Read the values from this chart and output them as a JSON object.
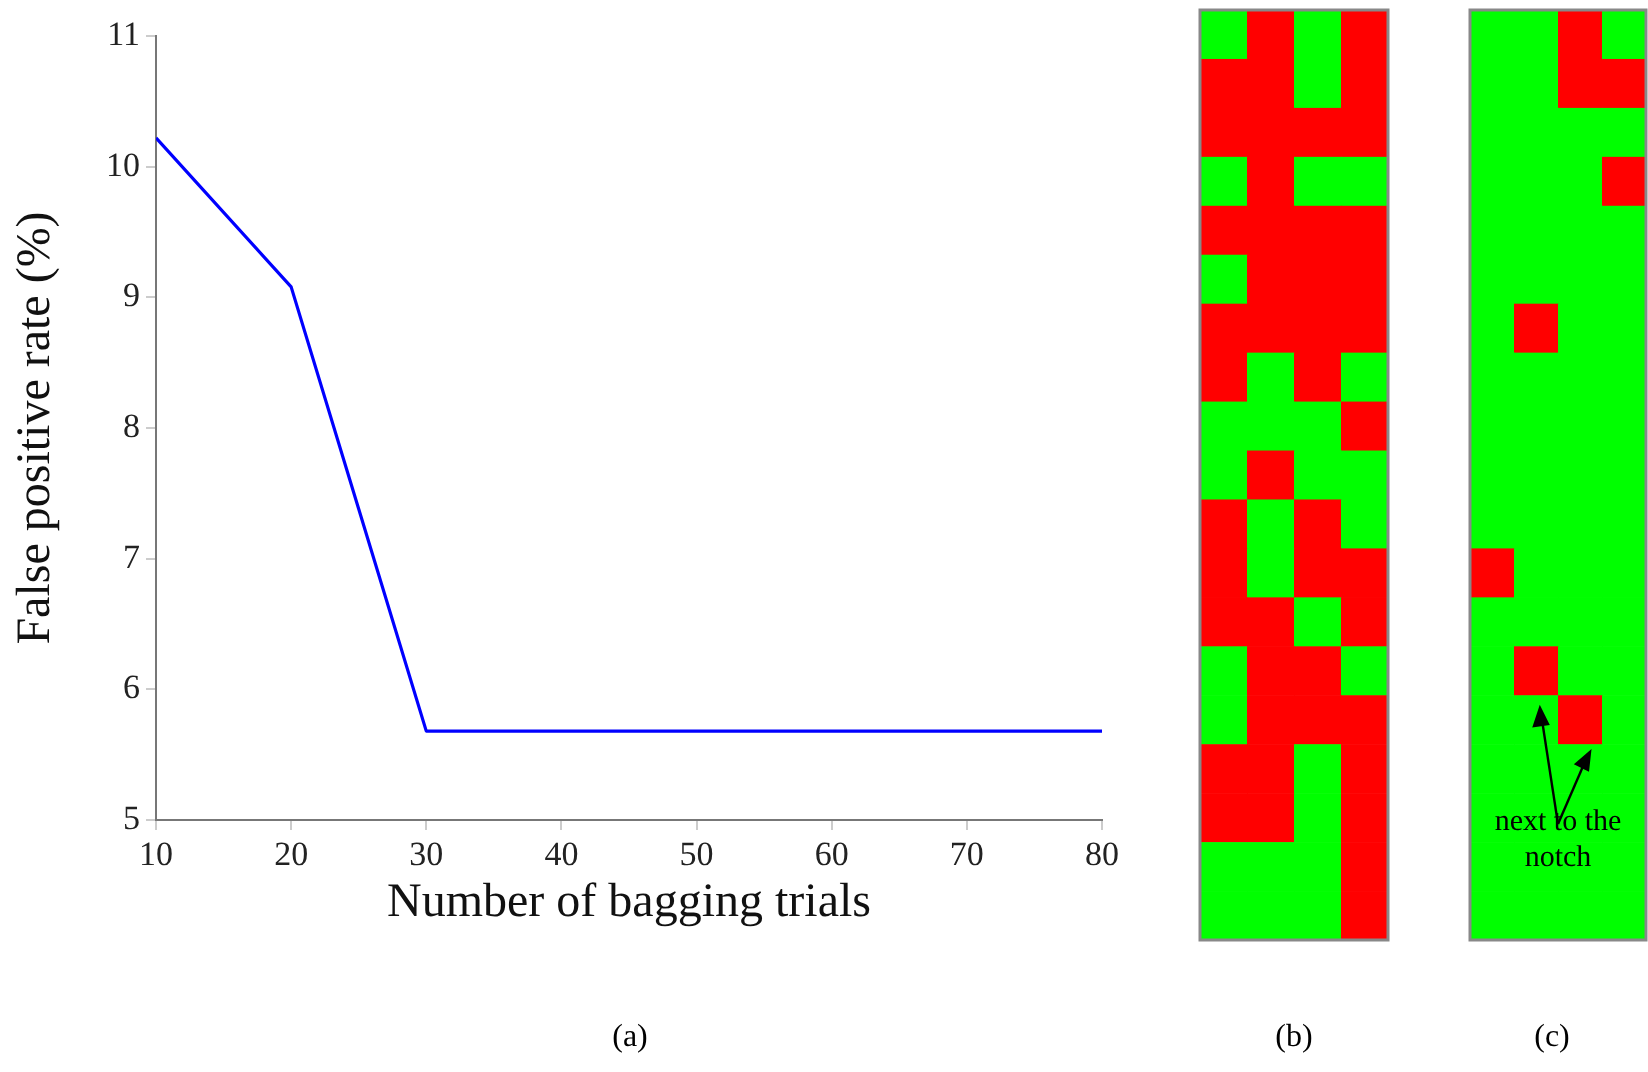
{
  "chart_data": [
    {
      "type": "line",
      "title": "(a)",
      "xlabel": "Number of bagging trials",
      "ylabel": "False positive rate (%)",
      "x": [
        10,
        20,
        30,
        40,
        50,
        60,
        70,
        80
      ],
      "series": [
        {
          "color": "#0000ff",
          "values": [
            10.22,
            9.08,
            5.68,
            5.68,
            5.68,
            5.68,
            5.68,
            5.68
          ]
        }
      ],
      "xlim": [
        10,
        80
      ],
      "xticks": [
        10,
        20,
        30,
        40,
        50,
        60,
        70,
        80
      ],
      "ylim": [
        5,
        11
      ],
      "yticks": [
        5,
        6,
        7,
        8,
        9,
        10,
        11
      ],
      "grid": false,
      "legend": false,
      "marker": "none",
      "line_style": "solid"
    },
    {
      "type": "other",
      "title": "(b)"
    },
    {
      "type": "other",
      "title": "(c)",
      "annotations": [
        "next to the notch"
      ]
    }
  ]
}
